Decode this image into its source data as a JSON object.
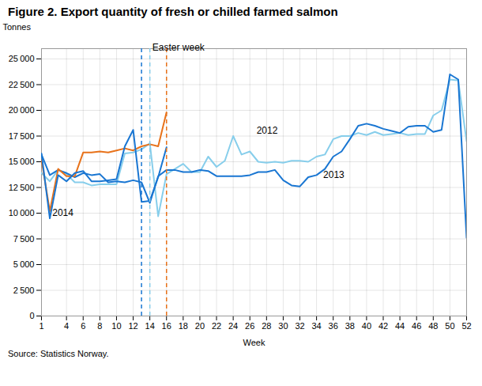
{
  "chart_data": {
    "type": "line",
    "title": "Figure 2. Export quantity of fresh or chilled farmed salmon",
    "x_label": "Week",
    "y_label": "Tonnes",
    "caption": "Source: Statistics Norway.",
    "xlim": [
      1,
      52
    ],
    "xticks": [
      1,
      4,
      6,
      8,
      10,
      12,
      14,
      16,
      18,
      20,
      22,
      24,
      26,
      28,
      30,
      32,
      34,
      36,
      38,
      40,
      42,
      44,
      46,
      48,
      50,
      52
    ],
    "ylim": [
      0,
      26000
    ],
    "yticks": [
      0,
      {
        "value": 2500,
        "label": "2 500"
      },
      {
        "value": 5000,
        "label": "5 000"
      },
      {
        "value": 7500,
        "label": "7 500"
      },
      {
        "value": 10000,
        "label": "10 000"
      },
      {
        "value": 12500,
        "label": "12 500"
      },
      {
        "value": 15000,
        "label": "15 000"
      },
      {
        "value": 17500,
        "label": "17 500"
      },
      {
        "value": 20000,
        "label": "20 000"
      },
      {
        "value": 22500,
        "label": "22 500"
      },
      {
        "value": 25000,
        "label": "25 000"
      }
    ],
    "grid": true,
    "legend": false,
    "series": [
      {
        "color": "#87CEEB",
        "x": [
          1,
          2,
          3,
          4,
          5,
          6,
          7,
          8,
          9,
          10,
          11,
          12,
          13,
          14,
          15,
          16,
          17,
          18,
          19,
          20,
          21,
          22,
          23,
          24,
          25,
          26,
          27,
          28,
          29,
          30,
          31,
          32,
          33,
          34,
          35,
          36,
          37,
          38,
          39,
          40,
          41,
          42,
          43,
          44,
          45,
          46,
          47,
          48,
          49,
          50,
          51,
          52
        ],
        "values": [
          13900,
          13100,
          14200,
          13800,
          13000,
          13000,
          12700,
          12800,
          12800,
          12800,
          15800,
          15900,
          16200,
          16800,
          9700,
          13800,
          14300,
          14800,
          14000,
          14000,
          15500,
          14500,
          15100,
          17500,
          15700,
          16000,
          15000,
          14900,
          15000,
          14900,
          15100,
          15100,
          15000,
          15500,
          15700,
          17200,
          17500,
          17500,
          17800,
          17600,
          17900,
          17600,
          17700,
          17800,
          17600,
          17700,
          17700,
          19500,
          20000,
          23000,
          22900,
          17000
        ]
      },
      {
        "color": "#1976D2",
        "x": [
          1,
          2,
          3,
          4,
          5,
          6,
          7,
          8,
          9,
          10,
          11,
          12,
          13,
          14,
          15,
          16,
          17,
          18,
          19,
          20,
          21,
          22,
          23,
          24,
          25,
          26,
          27,
          28,
          29,
          30,
          31,
          32,
          33,
          34,
          35,
          36,
          37,
          38,
          39,
          40,
          41,
          42,
          43,
          44,
          45,
          46,
          47,
          48,
          49,
          50,
          51,
          52
        ],
        "values": [
          15700,
          13700,
          14200,
          13900,
          13500,
          13900,
          13700,
          13800,
          13000,
          13100,
          13000,
          13200,
          13000,
          11000,
          13600,
          14200,
          14200,
          14000,
          14000,
          14200,
          14100,
          13600,
          13600,
          13600,
          13600,
          13700,
          14000,
          14000,
          14200,
          13200,
          12700,
          12600,
          13500,
          13700,
          14300,
          15500,
          16000,
          17200,
          18500,
          18700,
          18500,
          18200,
          18000,
          17800,
          18400,
          18500,
          18500,
          17900,
          18100,
          23500,
          23000,
          7600
        ]
      },
      {
        "color": "#E8721A",
        "x": [
          1,
          2,
          3,
          4,
          5,
          6,
          7,
          8,
          9,
          10,
          11,
          12,
          13,
          14,
          15,
          16
        ],
        "values": [
          15200,
          10200,
          14300,
          13600,
          13600,
          15900,
          15900,
          16000,
          15900,
          16100,
          16300,
          16100,
          16500,
          16700,
          16500,
          19800
        ]
      },
      {
        "color": "#1976D2",
        "x": [
          1,
          2,
          3,
          4,
          5,
          6,
          7,
          8,
          9,
          10,
          11,
          12,
          13,
          14,
          15,
          16
        ],
        "values": [
          15800,
          9500,
          13700,
          13100,
          13900,
          14100,
          13100,
          13100,
          13200,
          13300,
          16500,
          18100,
          11100,
          11200,
          13500,
          16400
        ]
      }
    ],
    "vlines": [
      {
        "x": 13,
        "color": "#1976D2",
        "line_style": "dashed"
      },
      {
        "x": 14,
        "color": "#87CEEB",
        "line_style": "dashed"
      },
      {
        "x": 16,
        "color": "#E8721A",
        "line_style": "dashed"
      }
    ],
    "annotations": [
      {
        "text": "2014",
        "x": 2.3,
        "y": 9700
      },
      {
        "text": "2012",
        "x": 26.8,
        "y": 17700
      },
      {
        "text": "2013",
        "x": 34.8,
        "y": 13400
      },
      {
        "text": "Easter week",
        "x": 14.3,
        "y": 25800
      }
    ]
  }
}
